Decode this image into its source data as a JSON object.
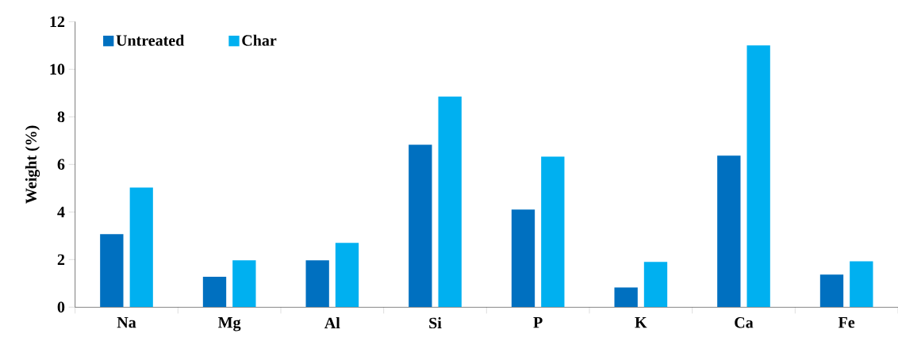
{
  "chart_data": {
    "type": "bar",
    "ylabel": "Weight (%)",
    "categories": [
      "Na",
      "Mg",
      "Al",
      "Si",
      "P",
      "K",
      "Ca",
      "Fe"
    ],
    "series": [
      {
        "name": "Untreated",
        "color": "#0070c0",
        "values": [
          3.07,
          1.28,
          1.97,
          6.83,
          4.1,
          0.83,
          6.37,
          1.37
        ]
      },
      {
        "name": "Char",
        "color": "#00b0f0",
        "values": [
          5.03,
          1.97,
          2.7,
          8.85,
          6.33,
          1.9,
          11.0,
          1.93
        ]
      }
    ],
    "ylim": [
      0,
      12
    ],
    "yticks": [
      0,
      2,
      4,
      6,
      8,
      10,
      12
    ],
    "grid": false,
    "legend": "top left"
  }
}
